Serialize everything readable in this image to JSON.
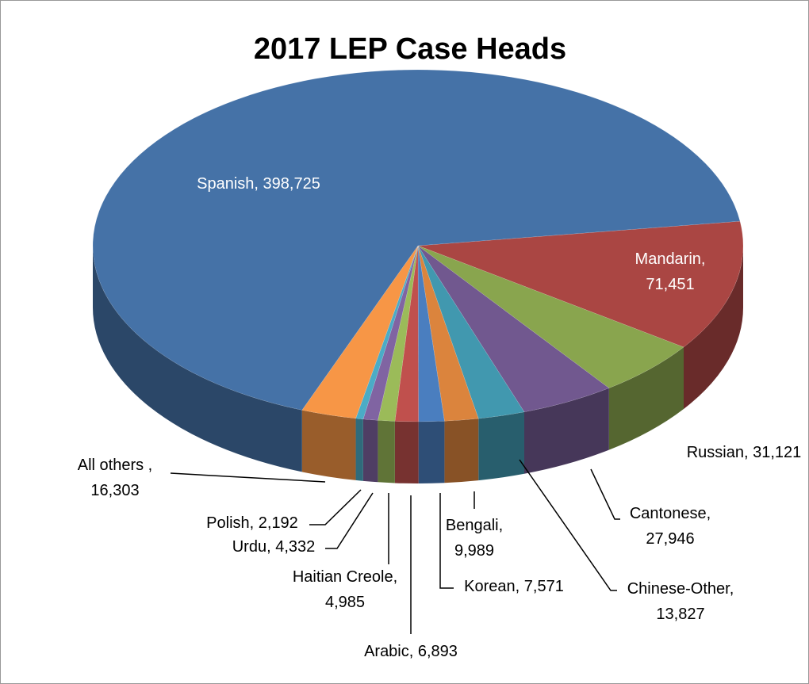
{
  "chart_data": {
    "type": "pie3d",
    "title": "2017 LEP Case Heads",
    "values": [
      71451,
      31121,
      27946,
      13827,
      9989,
      7571,
      6893,
      4985,
      4332,
      2192,
      16303,
      398725
    ],
    "value_labels": [
      "Mandarin,\n71,451",
      "Russian, 31,121",
      "Cantonese,\n27,946",
      "Chinese-Other,\n13,827",
      "Bengali,\n9,989",
      "Korean, 7,571",
      "Arabic, 6,893",
      "Haitian Creole,\n4,985",
      "Urdu, 4,332",
      "Polish, 2,192",
      "All others ,\n16,303",
      "Spanish, 398,725"
    ],
    "colors": [
      "#aa4643",
      "#89a54e",
      "#71588f",
      "#4198af",
      "#db843d",
      "#4a7ebf",
      "#c0504d",
      "#9bbb59",
      "#8064a2",
      "#4bacc6",
      "#f79646",
      "#4572a7"
    ]
  }
}
